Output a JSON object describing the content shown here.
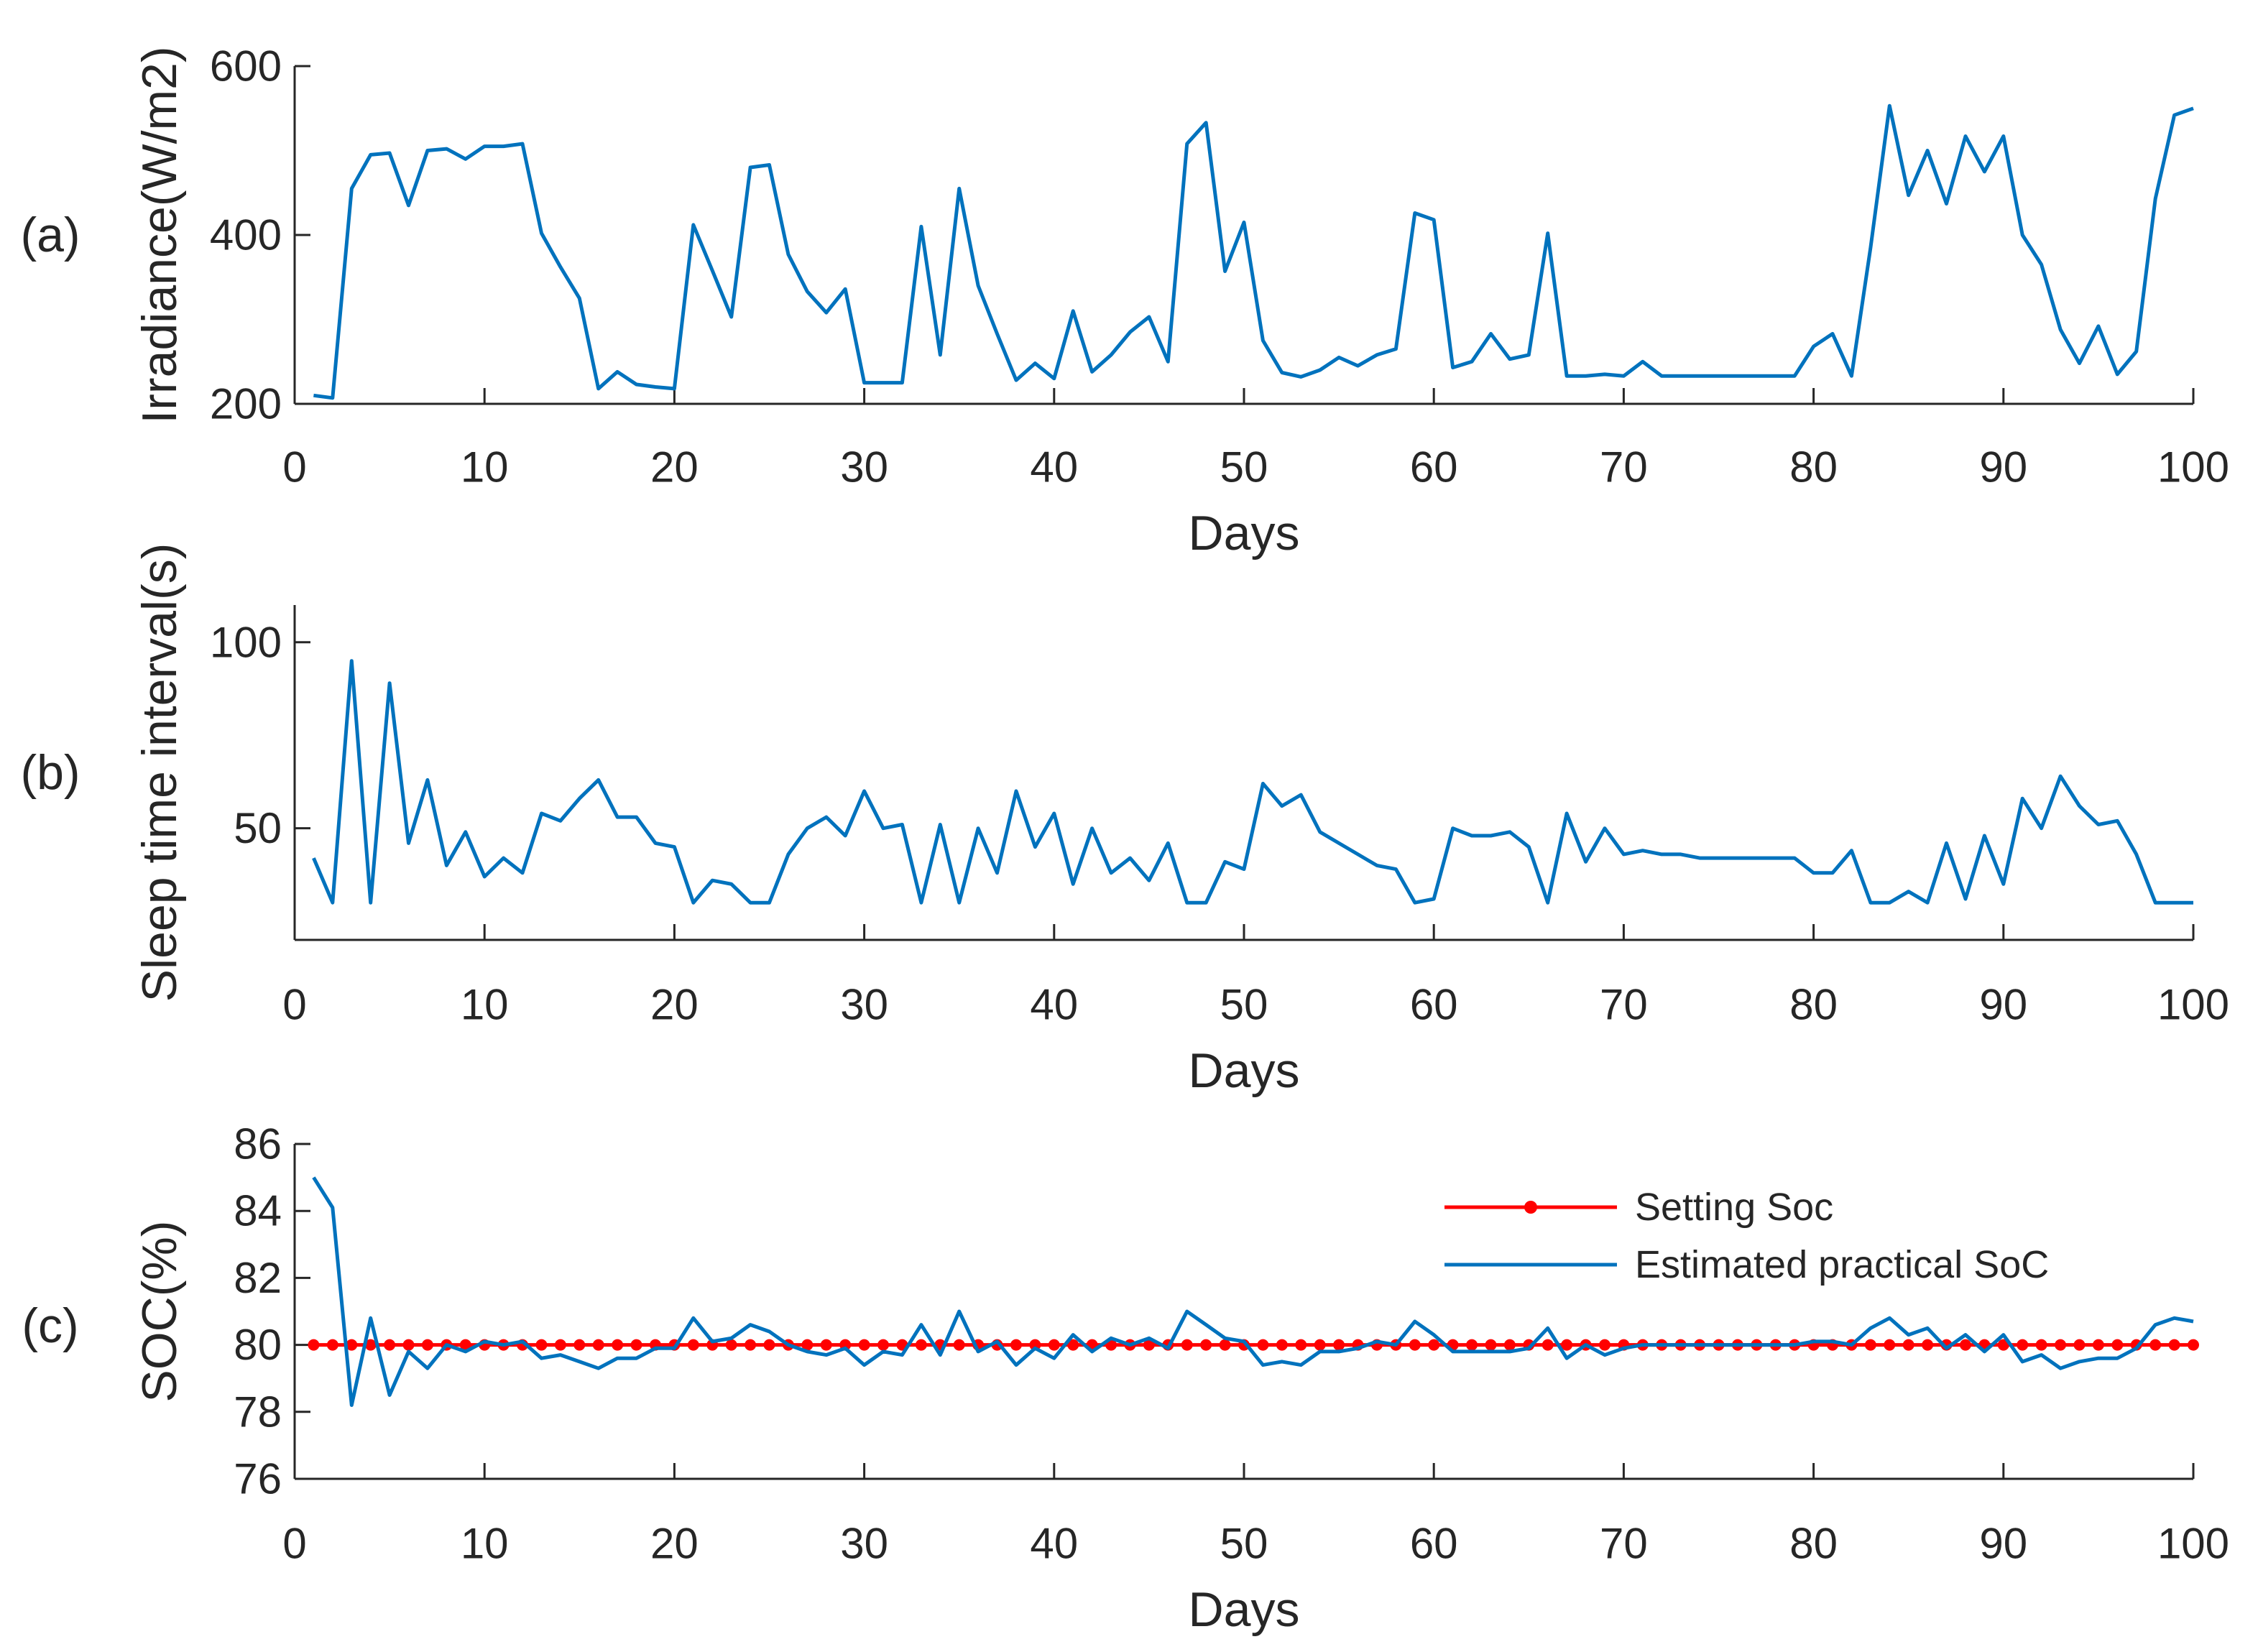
{
  "figure": {
    "panels": [
      "(a)",
      "(b)",
      "(c)"
    ]
  },
  "chart_data": [
    {
      "type": "line",
      "panel_label": "(a)",
      "title": "",
      "xlabel": "Days",
      "ylabel": "Irradiance(W/m2)",
      "xlim": [
        0,
        100
      ],
      "ylim": [
        200,
        600
      ],
      "xticks": [
        0,
        10,
        20,
        30,
        40,
        50,
        60,
        70,
        80,
        90,
        100
      ],
      "yticks": [
        200,
        400,
        600
      ],
      "grid": false,
      "colors": {
        "series": "#0072BD"
      },
      "series": [
        {
          "name": "Irradiance",
          "x": [
            1,
            2,
            3,
            4,
            5,
            6,
            7,
            8,
            9,
            10,
            11,
            12,
            13,
            14,
            15,
            16,
            17,
            18,
            19,
            20,
            21,
            22,
            23,
            24,
            25,
            26,
            27,
            28,
            29,
            30,
            31,
            32,
            33,
            34,
            35,
            36,
            37,
            38,
            39,
            40,
            41,
            42,
            43,
            44,
            45,
            46,
            47,
            48,
            49,
            50,
            51,
            52,
            53,
            54,
            55,
            56,
            57,
            58,
            59,
            60,
            61,
            62,
            63,
            64,
            65,
            66,
            67,
            68,
            69,
            70,
            71,
            72,
            73,
            74,
            75,
            76,
            77,
            78,
            79,
            80,
            81,
            82,
            83,
            84,
            85,
            86,
            87,
            88,
            89,
            90,
            91,
            92,
            93,
            94,
            95,
            96,
            97,
            98,
            99,
            100
          ],
          "values": [
            210,
            207,
            455,
            495,
            497,
            435,
            500,
            502,
            490,
            505,
            505,
            508,
            402,
            362,
            325,
            218,
            238,
            223,
            220,
            218,
            412,
            358,
            303,
            480,
            483,
            377,
            333,
            308,
            336,
            225,
            225,
            225,
            410,
            258,
            455,
            340,
            283,
            228,
            248,
            230,
            310,
            238,
            258,
            285,
            303,
            250,
            508,
            533,
            357,
            415,
            275,
            237,
            232,
            240,
            255,
            245,
            258,
            265,
            426,
            418,
            243,
            250,
            283,
            253,
            258,
            402,
            233,
            233,
            235,
            233,
            250,
            233,
            233,
            233,
            233,
            233,
            233,
            233,
            233,
            268,
            283,
            233,
            385,
            553,
            447,
            500,
            437,
            517,
            475,
            517,
            400,
            365,
            288,
            248,
            292,
            235,
            262,
            443,
            542,
            550
          ]
        }
      ]
    },
    {
      "type": "line",
      "panel_label": "(b)",
      "title": "",
      "xlabel": "Days",
      "ylabel": "Sleep time interval(s)",
      "xlim": [
        0,
        100
      ],
      "ylim": [
        20,
        110
      ],
      "xticks": [
        0,
        10,
        20,
        30,
        40,
        50,
        60,
        70,
        80,
        90,
        100
      ],
      "yticks": [
        50,
        100
      ],
      "grid": false,
      "colors": {
        "series": "#0072BD"
      },
      "series": [
        {
          "name": "Sleep time interval",
          "x": [
            1,
            2,
            3,
            4,
            5,
            6,
            7,
            8,
            9,
            10,
            11,
            12,
            13,
            14,
            15,
            16,
            17,
            18,
            19,
            20,
            21,
            22,
            23,
            24,
            25,
            26,
            27,
            28,
            29,
            30,
            31,
            32,
            33,
            34,
            35,
            36,
            37,
            38,
            39,
            40,
            41,
            42,
            43,
            44,
            45,
            46,
            47,
            48,
            49,
            50,
            51,
            52,
            53,
            54,
            55,
            56,
            57,
            58,
            59,
            60,
            61,
            62,
            63,
            64,
            65,
            66,
            67,
            68,
            69,
            70,
            71,
            72,
            73,
            74,
            75,
            76,
            77,
            78,
            79,
            80,
            81,
            82,
            83,
            84,
            85,
            86,
            87,
            88,
            89,
            90,
            91,
            92,
            93,
            94,
            95,
            96,
            97,
            98,
            99,
            100
          ],
          "values": [
            42,
            30,
            95,
            30,
            89,
            46,
            63,
            40,
            49,
            37,
            42,
            38,
            54,
            52,
            58,
            63,
            53,
            53,
            46,
            45,
            30,
            36,
            35,
            30,
            30,
            43,
            50,
            53,
            48,
            60,
            50,
            51,
            30,
            51,
            30,
            50,
            38,
            60,
            45,
            54,
            35,
            50,
            38,
            42,
            36,
            46,
            30,
            30,
            41,
            39,
            62,
            56,
            59,
            49,
            46,
            43,
            40,
            39,
            30,
            31,
            50,
            48,
            48,
            49,
            45,
            30,
            54,
            41,
            50,
            43,
            44,
            43,
            43,
            42,
            42,
            42,
            42,
            42,
            42,
            38,
            38,
            44,
            30,
            30,
            33,
            30,
            46,
            31,
            48,
            35,
            58,
            50,
            64,
            56,
            51,
            52,
            43,
            30,
            30,
            30
          ]
        }
      ]
    },
    {
      "type": "line",
      "panel_label": "(c)",
      "title": "",
      "xlabel": "Days",
      "ylabel": "SOC(%)",
      "xlim": [
        0,
        100
      ],
      "ylim": [
        76,
        86
      ],
      "xticks": [
        0,
        10,
        20,
        30,
        40,
        50,
        60,
        70,
        80,
        90,
        100
      ],
      "yticks": [
        76,
        78,
        80,
        82,
        84,
        86
      ],
      "grid": false,
      "legend": {
        "placement": "top-right"
      },
      "colors": {
        "setting": "#FF0000",
        "estimated": "#0072BD"
      },
      "series": [
        {
          "name": "Setting Soc",
          "x": [
            1,
            2,
            3,
            4,
            5,
            6,
            7,
            8,
            9,
            10,
            11,
            12,
            13,
            14,
            15,
            16,
            17,
            18,
            19,
            20,
            21,
            22,
            23,
            24,
            25,
            26,
            27,
            28,
            29,
            30,
            31,
            32,
            33,
            34,
            35,
            36,
            37,
            38,
            39,
            40,
            41,
            42,
            43,
            44,
            45,
            46,
            47,
            48,
            49,
            50,
            51,
            52,
            53,
            54,
            55,
            56,
            57,
            58,
            59,
            60,
            61,
            62,
            63,
            64,
            65,
            66,
            67,
            68,
            69,
            70,
            71,
            72,
            73,
            74,
            75,
            76,
            77,
            78,
            79,
            80,
            81,
            82,
            83,
            84,
            85,
            86,
            87,
            88,
            89,
            90,
            91,
            92,
            93,
            94,
            95,
            96,
            97,
            98,
            99,
            100
          ],
          "values": [
            80,
            80,
            80,
            80,
            80,
            80,
            80,
            80,
            80,
            80,
            80,
            80,
            80,
            80,
            80,
            80,
            80,
            80,
            80,
            80,
            80,
            80,
            80,
            80,
            80,
            80,
            80,
            80,
            80,
            80,
            80,
            80,
            80,
            80,
            80,
            80,
            80,
            80,
            80,
            80,
            80,
            80,
            80,
            80,
            80,
            80,
            80,
            80,
            80,
            80,
            80,
            80,
            80,
            80,
            80,
            80,
            80,
            80,
            80,
            80,
            80,
            80,
            80,
            80,
            80,
            80,
            80,
            80,
            80,
            80,
            80,
            80,
            80,
            80,
            80,
            80,
            80,
            80,
            80,
            80,
            80,
            80,
            80,
            80,
            80,
            80,
            80,
            80,
            80,
            80,
            80,
            80,
            80,
            80,
            80,
            80,
            80,
            80,
            80,
            80
          ],
          "marker": "dot"
        },
        {
          "name": "Estimated practical SoC",
          "x": [
            1,
            2,
            3,
            4,
            5,
            6,
            7,
            8,
            9,
            10,
            11,
            12,
            13,
            14,
            15,
            16,
            17,
            18,
            19,
            20,
            21,
            22,
            23,
            24,
            25,
            26,
            27,
            28,
            29,
            30,
            31,
            32,
            33,
            34,
            35,
            36,
            37,
            38,
            39,
            40,
            41,
            42,
            43,
            44,
            45,
            46,
            47,
            48,
            49,
            50,
            51,
            52,
            53,
            54,
            55,
            56,
            57,
            58,
            59,
            60,
            61,
            62,
            63,
            64,
            65,
            66,
            67,
            68,
            69,
            70,
            71,
            72,
            73,
            74,
            75,
            76,
            77,
            78,
            79,
            80,
            81,
            82,
            83,
            84,
            85,
            86,
            87,
            88,
            89,
            90,
            91,
            92,
            93,
            94,
            95,
            96,
            97,
            98,
            99,
            100
          ],
          "values": [
            85.0,
            84.1,
            78.2,
            80.8,
            78.5,
            79.8,
            79.3,
            80.0,
            79.8,
            80.1,
            80.0,
            80.1,
            79.6,
            79.7,
            79.5,
            79.3,
            79.6,
            79.6,
            79.9,
            79.9,
            80.8,
            80.1,
            80.2,
            80.6,
            80.4,
            80.0,
            79.8,
            79.7,
            79.9,
            79.4,
            79.8,
            79.7,
            80.6,
            79.7,
            81.0,
            79.8,
            80.1,
            79.4,
            79.9,
            79.6,
            80.3,
            79.8,
            80.2,
            80.0,
            80.2,
            79.9,
            81.0,
            80.6,
            80.2,
            80.1,
            79.4,
            79.5,
            79.4,
            79.8,
            79.8,
            79.9,
            80.1,
            80.0,
            80.7,
            80.3,
            79.8,
            79.8,
            79.8,
            79.8,
            79.9,
            80.5,
            79.6,
            80.0,
            79.7,
            79.9,
            80.0,
            80.0,
            80.0,
            80.0,
            80.0,
            80.0,
            80.0,
            80.0,
            80.0,
            80.1,
            80.1,
            80.0,
            80.5,
            80.8,
            80.3,
            80.5,
            79.9,
            80.3,
            79.8,
            80.3,
            79.5,
            79.7,
            79.3,
            79.5,
            79.6,
            79.6,
            79.9,
            80.6,
            80.8,
            80.7
          ]
        }
      ]
    }
  ]
}
